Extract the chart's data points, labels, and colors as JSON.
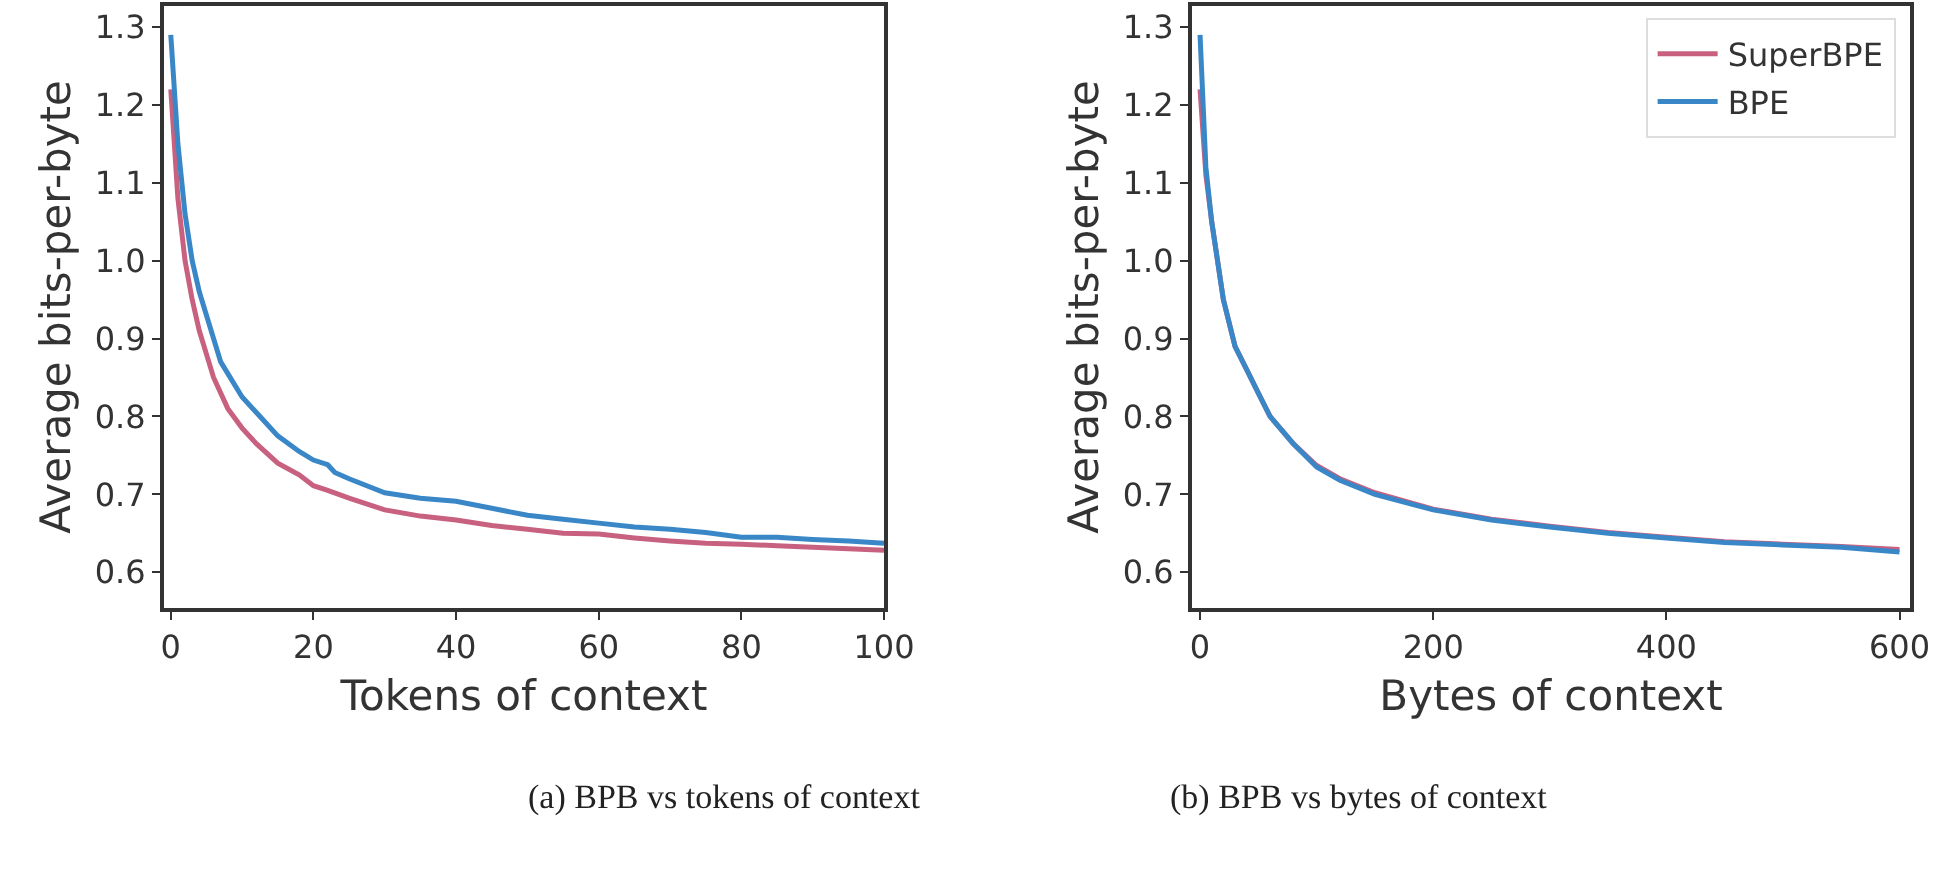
{
  "chart_data": [
    {
      "type": "line",
      "xlabel": "Tokens of context",
      "ylabel": "Average bits-per-byte",
      "annotations": [
        "(a) BPB vs tokens of context"
      ],
      "xlim": [
        -0.95,
        100
      ],
      "xticks": [
        0,
        20,
        40,
        60,
        80,
        100
      ],
      "ylim": [
        0.554,
        1.327
      ],
      "yticks": [
        0.6,
        0.7,
        0.8,
        0.9,
        {
          "value": 1,
          "label": "1.0"
        },
        1.1,
        1.2,
        1.3
      ],
      "legend": false,
      "marker": "none",
      "line_style": "solid",
      "series": [
        {
          "color": "#c8607f",
          "x": [
            0,
            1,
            2,
            3,
            4,
            5,
            6,
            8,
            10,
            12,
            15,
            18,
            20,
            22,
            25,
            30,
            35,
            40,
            45,
            50,
            55,
            60,
            65,
            70,
            75,
            80,
            85,
            90,
            95,
            100
          ],
          "values": [
            1.22,
            1.08,
            1.0,
            0.95,
            0.91,
            0.88,
            0.85,
            0.81,
            0.785,
            0.765,
            0.74,
            0.725,
            0.711,
            0.705,
            0.695,
            0.68,
            0.672,
            0.667,
            0.66,
            0.655,
            0.65,
            0.649,
            0.644,
            0.64,
            0.637,
            0.636,
            0.634,
            0.632,
            0.63,
            0.628
          ]
        },
        {
          "color": "#3a87c8",
          "x": [
            0,
            1,
            2,
            3,
            4,
            5,
            6,
            7,
            8,
            10,
            12,
            15,
            18,
            20,
            22,
            23,
            25,
            30,
            35,
            40,
            45,
            50,
            55,
            60,
            65,
            70,
            75,
            80,
            85,
            90,
            95,
            100
          ],
          "values": [
            1.29,
            1.15,
            1.06,
            1.0,
            0.96,
            0.93,
            0.9,
            0.87,
            0.855,
            0.825,
            0.805,
            0.775,
            0.755,
            0.744,
            0.738,
            0.728,
            0.72,
            0.702,
            0.695,
            0.691,
            0.682,
            0.673,
            0.668,
            0.663,
            0.658,
            0.655,
            0.651,
            0.645,
            0.645,
            0.642,
            0.64,
            0.637
          ]
        }
      ]
    },
    {
      "type": "line",
      "xlabel": "Bytes of context",
      "ylabel": "Average bits-per-byte",
      "annotations": [
        "(b) BPB vs bytes of context"
      ],
      "xlim": [
        -6.9,
        609
      ],
      "xticks": [
        0,
        200,
        400,
        600
      ],
      "ylim": [
        0.554,
        1.327
      ],
      "yticks": [
        0.6,
        0.7,
        0.8,
        0.9,
        {
          "value": 1,
          "label": "1.0"
        },
        1.1,
        1.2,
        1.3
      ],
      "legend": "top right",
      "marker": "none",
      "line_style": "solid",
      "series": [
        {
          "name": "SuperBPE",
          "color": "#c8607f",
          "x": [
            0,
            5,
            10,
            20,
            30,
            40,
            50,
            60,
            80,
            100,
            120,
            150,
            200,
            250,
            300,
            350,
            400,
            450,
            500,
            550,
            600
          ],
          "values": [
            1.22,
            1.11,
            1.05,
            0.95,
            0.89,
            0.86,
            0.83,
            0.8,
            0.765,
            0.737,
            0.72,
            0.702,
            0.681,
            0.668,
            0.659,
            0.651,
            0.645,
            0.639,
            0.636,
            0.633,
            0.629
          ]
        },
        {
          "name": "BPE",
          "color": "#3a87c8",
          "x": [
            0,
            5,
            10,
            20,
            30,
            40,
            50,
            60,
            80,
            100,
            120,
            150,
            200,
            250,
            300,
            350,
            400,
            450,
            500,
            550,
            600
          ],
          "values": [
            1.29,
            1.12,
            1.05,
            0.95,
            0.89,
            0.86,
            0.83,
            0.8,
            0.765,
            0.735,
            0.718,
            0.7,
            0.68,
            0.667,
            0.658,
            0.65,
            0.644,
            0.638,
            0.635,
            0.632,
            0.626
          ]
        }
      ]
    }
  ]
}
